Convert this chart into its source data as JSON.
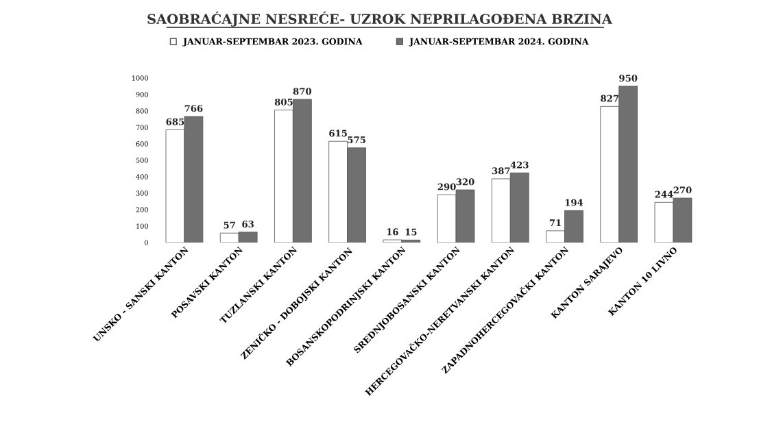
{
  "chart_data": {
    "type": "bar",
    "title": "SAOBRAĆAJNE NESREĆE- UZROK NEPRILAGOĐENA BRZINA",
    "categories": [
      "UNSKO - SANSKI KANTON",
      "POSAVSKI KANTON",
      "TUZLANSKI KANTON",
      "ZENIČKO - DOBOJSKI KANTON",
      "BOSANSKOPODRINJSKI KANTON",
      "SREDNJOBOSANSKI KANTON",
      "HERCEGOVAČKO-NERETVANSKI KANTON",
      "ZAPADNOHERCEGOVAČKI KANTON",
      "KANTON SARAJEVO",
      "KANTON 10 LIVNO"
    ],
    "series": [
      {
        "name": "JANUAR-SEPTEMBAR 2023. GODINA",
        "color": "#ffffff",
        "values": [
          685,
          57,
          805,
          615,
          16,
          290,
          387,
          71,
          827,
          244
        ]
      },
      {
        "name": "JANUAR-SEPTEMBAR 2024. GODINA",
        "color": "#707070",
        "values": [
          766,
          63,
          870,
          575,
          15,
          320,
          423,
          194,
          950,
          270
        ]
      }
    ],
    "ylim": [
      0,
      1000
    ],
    "yticks": [
      0,
      100,
      200,
      300,
      400,
      500,
      600,
      700,
      800,
      900,
      1000
    ],
    "grid": false,
    "legend": "top",
    "data_labels": true
  }
}
